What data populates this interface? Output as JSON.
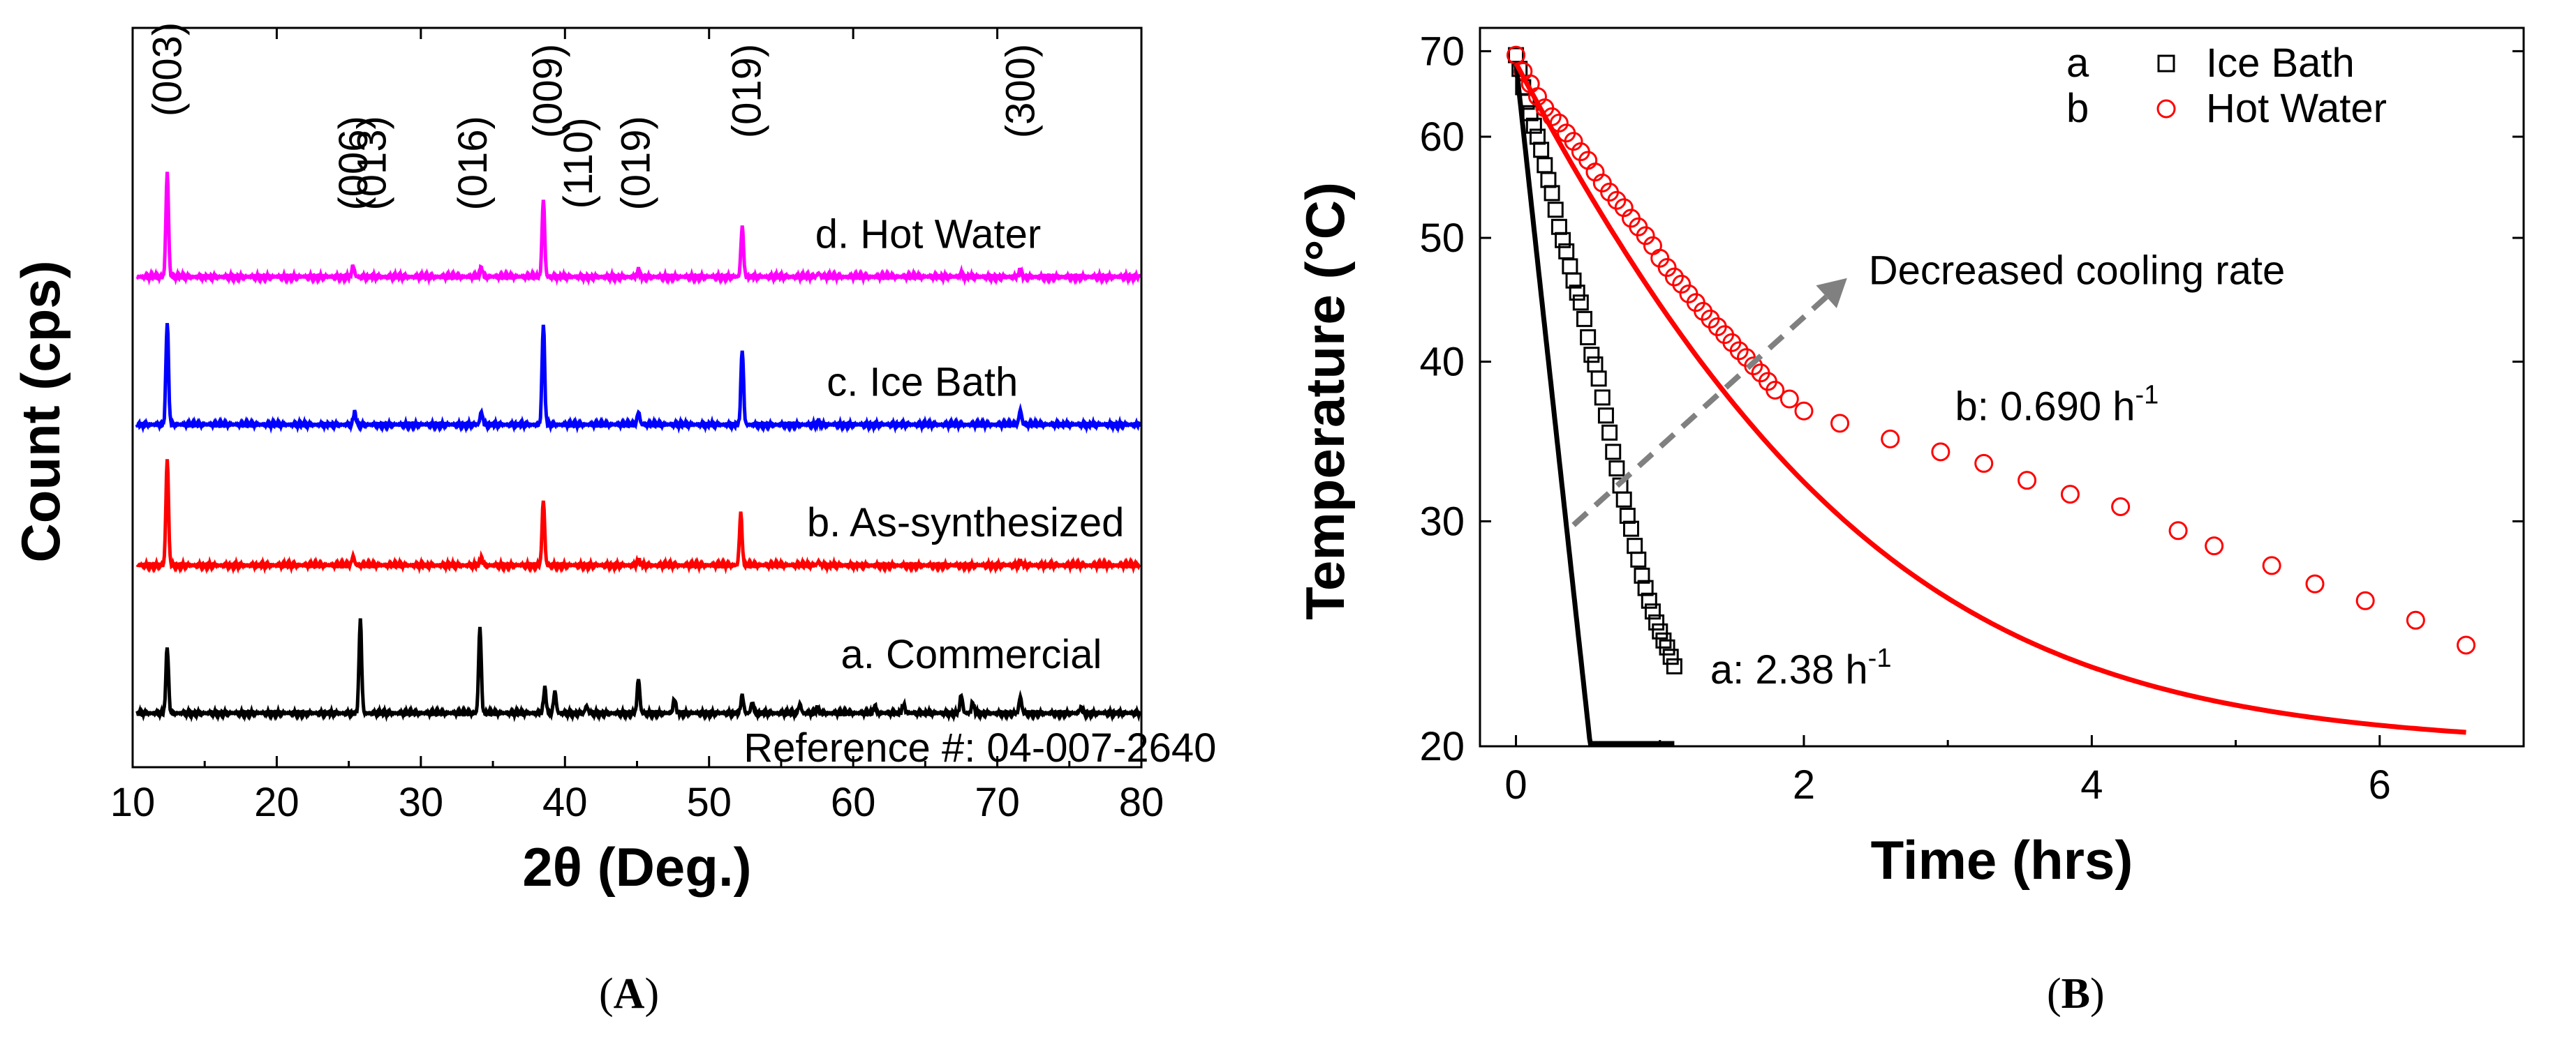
{
  "figure": {
    "panels": [
      {
        "label_open": "(",
        "label_letter": "A",
        "label_close": ")"
      },
      {
        "label_open": "(",
        "label_letter": "B",
        "label_close": ")"
      }
    ]
  },
  "chart_data": [
    {
      "type": "line",
      "panel": "A",
      "title": "",
      "xlabel": "2θ (Deg.)",
      "ylabel": "Count (cps)",
      "xlim": [
        10,
        80
      ],
      "xticks": [
        10,
        20,
        30,
        40,
        50,
        60,
        70,
        80
      ],
      "ylim": [
        -0.3,
        3.8
      ],
      "yticks": [],
      "grid": false,
      "series": [
        {
          "name": "a. Commercial",
          "color": "#000000",
          "offset": 0,
          "peaks": [
            {
              "x": 12.4,
              "h": 0.37
            },
            {
              "x": 25.8,
              "h": 0.52
            },
            {
              "x": 34.1,
              "h": 0.48
            },
            {
              "x": 38.6,
              "h": 0.14
            },
            {
              "x": 39.3,
              "h": 0.12
            },
            {
              "x": 41.5,
              "h": 0.04
            },
            {
              "x": 45.1,
              "h": 0.19
            },
            {
              "x": 47.6,
              "h": 0.08
            },
            {
              "x": 52.3,
              "h": 0.1
            },
            {
              "x": 53.0,
              "h": 0.06
            },
            {
              "x": 56.3,
              "h": 0.05
            },
            {
              "x": 57.5,
              "h": 0.03
            },
            {
              "x": 61.5,
              "h": 0.04
            },
            {
              "x": 63.5,
              "h": 0.05
            },
            {
              "x": 67.5,
              "h": 0.1
            },
            {
              "x": 68.3,
              "h": 0.06
            },
            {
              "x": 71.6,
              "h": 0.09
            },
            {
              "x": 75.8,
              "h": 0.03
            }
          ]
        },
        {
          "name": "b. As-synthesized",
          "color": "#ff0000",
          "offset": 0.82,
          "peaks": [
            {
              "x": 12.4,
              "h": 0.59
            },
            {
              "x": 25.3,
              "h": 0.05
            },
            {
              "x": 34.2,
              "h": 0.04
            },
            {
              "x": 38.5,
              "h": 0.36
            },
            {
              "x": 45.1,
              "h": 0.03
            },
            {
              "x": 52.2,
              "h": 0.29
            },
            {
              "x": 57.6,
              "h": 0.02
            },
            {
              "x": 71.6,
              "h": 0.02
            }
          ]
        },
        {
          "name": "c. Ice Bath",
          "color": "#0000ff",
          "offset": 1.6,
          "peaks": [
            {
              "x": 12.4,
              "h": 0.57
            },
            {
              "x": 25.4,
              "h": 0.07
            },
            {
              "x": 34.2,
              "h": 0.07
            },
            {
              "x": 38.5,
              "h": 0.56
            },
            {
              "x": 45.1,
              "h": 0.07
            },
            {
              "x": 52.3,
              "h": 0.42
            },
            {
              "x": 57.6,
              "h": 0.02
            },
            {
              "x": 71.6,
              "h": 0.08
            }
          ]
        },
        {
          "name": "d. Hot Water",
          "color": "#ff00ff",
          "offset": 2.42,
          "peaks": [
            {
              "x": 12.4,
              "h": 0.58
            },
            {
              "x": 25.3,
              "h": 0.06
            },
            {
              "x": 34.2,
              "h": 0.05
            },
            {
              "x": 38.5,
              "h": 0.43
            },
            {
              "x": 45.1,
              "h": 0.04
            },
            {
              "x": 52.3,
              "h": 0.28
            },
            {
              "x": 57.6,
              "h": 0.02
            },
            {
              "x": 67.5,
              "h": 0.02
            },
            {
              "x": 71.6,
              "h": 0.04
            }
          ]
        }
      ],
      "reflections": [
        {
          "label": "(003)",
          "x": 12.4,
          "y": 3.57
        },
        {
          "label": "(006)",
          "x": 25.3,
          "y": 3.05
        },
        {
          "label": "(013)",
          "x": 26.6,
          "y": 3.05
        },
        {
          "label": "(016)",
          "x": 33.6,
          "y": 3.05
        },
        {
          "label": "(009)",
          "x": 38.8,
          "y": 3.45
        },
        {
          "label": "(110)",
          "x": 40.9,
          "y": 3.05
        },
        {
          "label": "(019)",
          "x": 44.9,
          "y": 3.05
        },
        {
          "label": "(019)",
          "x": 52.6,
          "y": 3.45
        },
        {
          "label": "(300)",
          "x": 71.6,
          "y": 3.45
        }
      ],
      "annotations": [
        {
          "text": "d. Hot Water",
          "x": 65.2,
          "y": 2.58
        },
        {
          "text": "c. Ice Bath",
          "x": 64.8,
          "y": 1.76
        },
        {
          "text": "b. As-synthesized",
          "x": 67.8,
          "y": 0.98
        },
        {
          "text": "a. Commercial",
          "x": 68.2,
          "y": 0.25
        },
        {
          "text": "Reference #: 04-007-2640",
          "x": 68.8,
          "y": -0.27
        }
      ]
    },
    {
      "type": "scatter",
      "panel": "B",
      "title": "",
      "xlabel": "Time (hrs)",
      "ylabel": "Temperature (°C)",
      "xlim": [
        -0.25,
        7.0
      ],
      "ylim": [
        20,
        73
      ],
      "yscale": "log",
      "xticks": [
        0,
        2,
        4,
        6
      ],
      "yticks": [
        20,
        30,
        40,
        50,
        60,
        70
      ],
      "grid": false,
      "legend": {
        "position": "top-right",
        "entries": [
          {
            "letter": "a",
            "marker": "square",
            "label": "Ice Bath",
            "color": "#000000"
          },
          {
            "letter": "b",
            "marker": "circle",
            "label": "Hot Water",
            "color": "#ff0000"
          }
        ]
      },
      "series": [
        {
          "name": "Ice Bath",
          "color": "#000000",
          "marker": "square",
          "x": [
            0.0,
            0.025,
            0.05,
            0.075,
            0.1,
            0.125,
            0.15,
            0.175,
            0.2,
            0.225,
            0.25,
            0.275,
            0.3,
            0.325,
            0.35,
            0.375,
            0.4,
            0.425,
            0.45,
            0.475,
            0.5,
            0.525,
            0.55,
            0.575,
            0.6,
            0.625,
            0.65,
            0.675,
            0.7,
            0.725,
            0.75,
            0.775,
            0.8,
            0.825,
            0.85,
            0.875,
            0.9,
            0.925,
            0.95,
            0.975,
            1.0,
            1.025,
            1.05,
            1.075,
            1.1
          ],
          "y": [
            69.5,
            67.8,
            65.6,
            63.9,
            62.6,
            61.2,
            60.0,
            58.6,
            57.0,
            55.5,
            54.2,
            52.6,
            51.0,
            49.8,
            48.8,
            47.5,
            46.3,
            45.3,
            44.5,
            43.2,
            41.8,
            40.5,
            39.8,
            38.8,
            37.5,
            36.3,
            35.2,
            34.0,
            33.0,
            32.0,
            31.2,
            30.3,
            29.6,
            28.7,
            28.0,
            27.2,
            26.6,
            26.0,
            25.5,
            25.0,
            24.6,
            24.2,
            23.9,
            23.5,
            23.1
          ]
        },
        {
          "name": "Hot Water",
          "color": "#ff0000",
          "marker": "circle",
          "x": [
            0.0,
            0.05,
            0.1,
            0.15,
            0.2,
            0.25,
            0.3,
            0.35,
            0.4,
            0.45,
            0.5,
            0.55,
            0.6,
            0.65,
            0.7,
            0.75,
            0.8,
            0.85,
            0.9,
            0.95,
            1.0,
            1.05,
            1.1,
            1.15,
            1.2,
            1.25,
            1.3,
            1.35,
            1.4,
            1.45,
            1.5,
            1.55,
            1.6,
            1.65,
            1.7,
            1.75,
            1.8,
            1.9,
            2.0,
            2.25,
            2.6,
            2.95,
            3.25,
            3.55,
            3.85,
            4.2,
            4.6,
            4.85,
            5.25,
            5.55,
            5.9,
            6.25,
            6.6
          ],
          "y": [
            69.5,
            67.5,
            66.0,
            64.5,
            63.2,
            62.2,
            61.5,
            60.4,
            59.5,
            58.4,
            57.5,
            56.3,
            55.2,
            54.3,
            53.5,
            52.8,
            51.8,
            51.0,
            50.2,
            49.3,
            48.2,
            47.4,
            46.6,
            46.0,
            45.2,
            44.5,
            43.8,
            43.2,
            42.6,
            42.0,
            41.4,
            40.8,
            40.3,
            39.7,
            39.2,
            38.6,
            38.0,
            37.4,
            36.6,
            35.8,
            34.8,
            34.0,
            33.3,
            32.3,
            31.5,
            30.8,
            29.5,
            28.7,
            27.7,
            26.8,
            26.0,
            25.1,
            24.0
          ]
        }
      ],
      "fits": [
        {
          "name": "Ice Bath fit",
          "color": "#000000",
          "k": 2.38,
          "T0": 68.5,
          "x_end": 1.1
        },
        {
          "name": "Hot Water fit",
          "color": "#ff0000",
          "k": 0.69,
          "T0": 68.5,
          "x_end": 6.6
        }
      ],
      "annotations": [
        {
          "text": "Decreased cooling rate",
          "x": 2.45,
          "y": 46.0,
          "color": "#000000"
        },
        {
          "text": "b:  0.690 h",
          "sup": "-1",
          "x": 3.05,
          "y": 36.0,
          "color": "#ff0000"
        },
        {
          "text": "a: 2.38 h",
          "sup": "-1",
          "x": 1.35,
          "y": 22.4,
          "color": "#000000"
        }
      ],
      "arrow": {
        "x1": 0.4,
        "y1": 29.8,
        "x2": 2.3,
        "y2": 46.5,
        "color": "#808080"
      }
    }
  ]
}
